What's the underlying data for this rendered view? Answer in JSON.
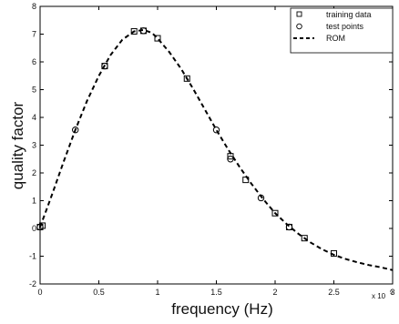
{
  "chart_data": {
    "type": "line",
    "xlabel": "frequency (Hz)",
    "ylabel": "quality factor",
    "x_exponent_label": "x 10",
    "x_exponent_power": "9",
    "xlim": [
      0,
      3
    ],
    "ylim": [
      -2,
      8
    ],
    "x_ticks": [
      "0",
      "0.5",
      "1",
      "1.5",
      "2",
      "2.5",
      "3"
    ],
    "y_ticks": [
      "-2",
      "-1",
      "0",
      "1",
      "2",
      "3",
      "4",
      "5",
      "6",
      "7",
      "8"
    ],
    "legend_position": "top-right",
    "legend": {
      "training": "training data",
      "test": "test points",
      "rom": "ROM"
    },
    "series": [
      {
        "name": "training data",
        "marker": "square",
        "x": [
          0.0,
          0.02,
          0.55,
          0.8,
          0.88,
          1.0,
          1.25,
          1.62,
          1.75,
          2.0,
          2.12,
          2.25,
          2.5
        ],
        "y": [
          0.05,
          0.1,
          5.85,
          7.1,
          7.12,
          6.85,
          5.4,
          2.6,
          1.75,
          0.55,
          0.05,
          -0.35,
          -0.9
        ]
      },
      {
        "name": "test points",
        "marker": "circle",
        "x": [
          0.0,
          0.3,
          0.55,
          0.88,
          1.5,
          1.62,
          1.88,
          2.12
        ],
        "y": [
          0.05,
          3.55,
          5.85,
          7.12,
          3.55,
          2.5,
          1.1,
          0.05
        ]
      },
      {
        "name": "ROM",
        "style": "dashed",
        "x": [
          0.0,
          0.1,
          0.2,
          0.3,
          0.4,
          0.5,
          0.6,
          0.7,
          0.8,
          0.88,
          0.95,
          1.0,
          1.1,
          1.2,
          1.3,
          1.4,
          1.5,
          1.6,
          1.7,
          1.8,
          1.9,
          2.0,
          2.1,
          2.2,
          2.3,
          2.4,
          2.5,
          2.6,
          2.7,
          2.8,
          2.9,
          3.0
        ],
        "y": [
          0.05,
          1.2,
          2.4,
          3.55,
          4.6,
          5.5,
          6.25,
          6.8,
          7.1,
          7.15,
          7.05,
          6.85,
          6.35,
          5.75,
          5.05,
          4.3,
          3.55,
          2.85,
          2.2,
          1.6,
          1.05,
          0.55,
          0.15,
          -0.2,
          -0.5,
          -0.75,
          -0.95,
          -1.1,
          -1.22,
          -1.32,
          -1.4,
          -1.5
        ]
      }
    ]
  }
}
